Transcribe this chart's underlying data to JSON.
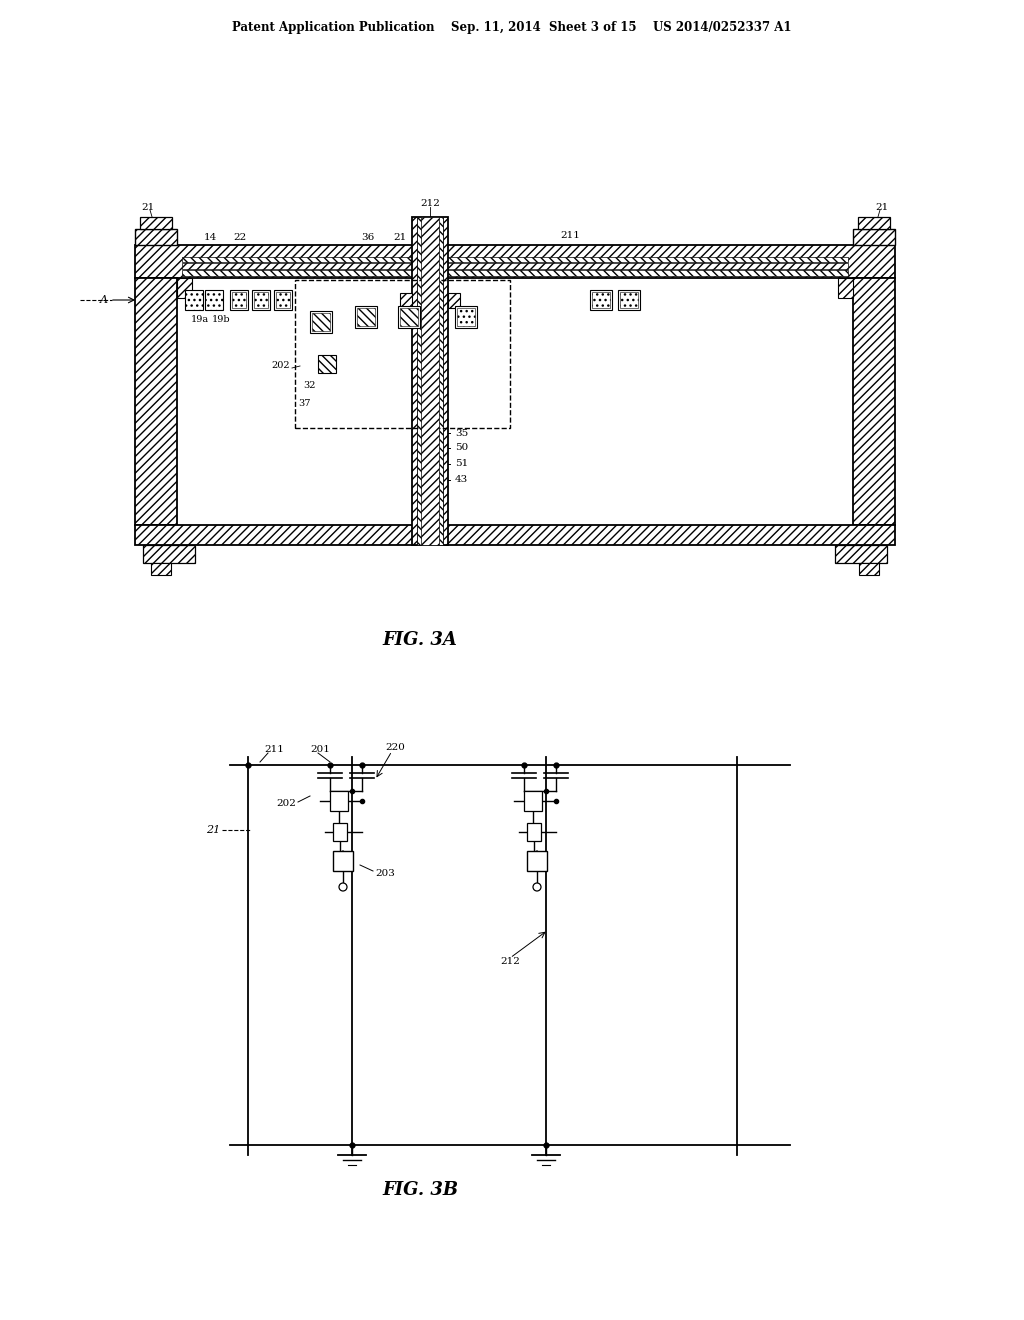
{
  "bg_color": "#ffffff",
  "header": "Patent Application Publication    Sep. 11, 2014  Sheet 3 of 15    US 2014/0252337 A1",
  "fig3a_caption": "FIG. 3A",
  "fig3b_caption": "FIG. 3B"
}
